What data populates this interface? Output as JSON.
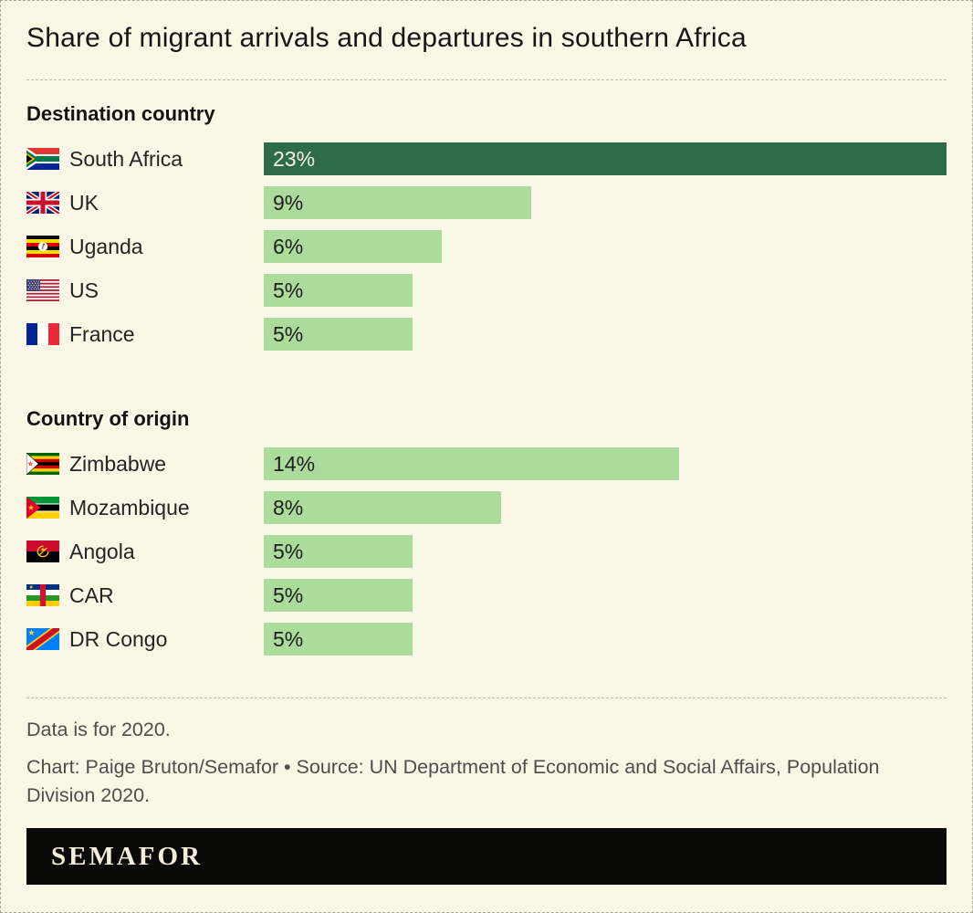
{
  "title": "Share of migrant arrivals and departures in southern Africa",
  "colors": {
    "background": "#FBF7E6",
    "frame_border": "#ABA795",
    "divider": "#BDB8A4",
    "bar_highlight": "#2E6B4B",
    "bar_default": "#ABDC9B",
    "footer_bg": "#0A0A09",
    "footer_text": "#F4EFDA"
  },
  "chart_data": {
    "type": "bar",
    "unit": "%",
    "max_value": 23,
    "orientation": "horizontal",
    "sections": [
      {
        "heading": "Destination country",
        "rows": [
          {
            "country": "South Africa",
            "flag_icon": "south-africa-flag-icon",
            "value": 23,
            "label": "23%",
            "highlight": true
          },
          {
            "country": "UK",
            "flag_icon": "uk-flag-icon",
            "value": 9,
            "label": "9%",
            "highlight": false
          },
          {
            "country": "Uganda",
            "flag_icon": "uganda-flag-icon",
            "value": 6,
            "label": "6%",
            "highlight": false
          },
          {
            "country": "US",
            "flag_icon": "us-flag-icon",
            "value": 5,
            "label": "5%",
            "highlight": false
          },
          {
            "country": "France",
            "flag_icon": "france-flag-icon",
            "value": 5,
            "label": "5%",
            "highlight": false
          }
        ]
      },
      {
        "heading": "Country of origin",
        "rows": [
          {
            "country": "Zimbabwe",
            "flag_icon": "zimbabwe-flag-icon",
            "value": 14,
            "label": "14%",
            "highlight": false
          },
          {
            "country": "Mozambique",
            "flag_icon": "mozambique-flag-icon",
            "value": 8,
            "label": "8%",
            "highlight": false
          },
          {
            "country": "Angola",
            "flag_icon": "angola-flag-icon",
            "value": 5,
            "label": "5%",
            "highlight": false
          },
          {
            "country": "CAR",
            "flag_icon": "car-flag-icon",
            "value": 5,
            "label": "5%",
            "highlight": false
          },
          {
            "country": "DR Congo",
            "flag_icon": "dr-congo-flag-icon",
            "value": 5,
            "label": "5%",
            "highlight": false
          }
        ]
      }
    ]
  },
  "footer": {
    "note": "Data is for 2020.",
    "credit": "Chart: Paige Bruton/Semafor • Source: UN Department of Economic and Social Affairs, Population Division 2020.",
    "brand": "SEMAFOR"
  }
}
